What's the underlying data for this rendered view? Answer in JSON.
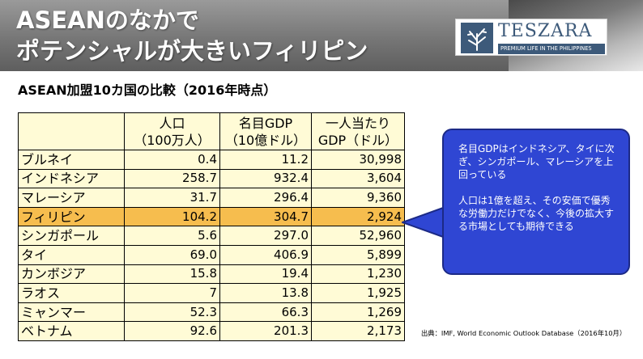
{
  "header": {
    "title_line1": "ASEANのなかで",
    "title_line2": "ポテンシャルが大きいフィリピン",
    "logo_name": "TESZARA",
    "logo_tagline": "PREMIUM LIFE IN THE PHILIPPINES"
  },
  "subtitle": "ASEAN加盟10カ国の比較（2016年時点）",
  "table": {
    "headers": [
      {
        "line1": "",
        "line2": ""
      },
      {
        "line1": "人口",
        "line2": "（100万人）"
      },
      {
        "line1": "名目GDP",
        "line2": "（10億ドル）"
      },
      {
        "line1": "一人当たり",
        "line2": "GDP（ドル）"
      }
    ],
    "rows": [
      {
        "country": "ブルネイ",
        "population": "0.4",
        "gdp": "11.2",
        "per_capita": "30,998"
      },
      {
        "country": "インドネシア",
        "population": "258.7",
        "gdp": "932.4",
        "per_capita": "3,604"
      },
      {
        "country": "マレーシア",
        "population": "31.7",
        "gdp": "296.4",
        "per_capita": "9,360"
      },
      {
        "country": "フィリピン",
        "population": "104.2",
        "gdp": "304.7",
        "per_capita": "2,924"
      },
      {
        "country": "シンガポール",
        "population": "5.6",
        "gdp": "297.0",
        "per_capita": "52,960"
      },
      {
        "country": "タイ",
        "population": "69.0",
        "gdp": "406.9",
        "per_capita": "5,899"
      },
      {
        "country": "カンボジア",
        "population": "15.8",
        "gdp": "19.4",
        "per_capita": "1,230"
      },
      {
        "country": "ラオス",
        "population": "7",
        "gdp": "13.8",
        "per_capita": "1,925"
      },
      {
        "country": "ミャンマー",
        "population": "52.3",
        "gdp": "66.3",
        "per_capita": "1,269"
      },
      {
        "country": "ベトナム",
        "population": "92.6",
        "gdp": "201.3",
        "per_capita": "2,173"
      }
    ],
    "highlight_color": "#f6bd4e",
    "background_color": "#fffbd6"
  },
  "callout": {
    "paragraph1": "名目GDPはインドネシア、タイに次ぎ、シンガポール、マレーシアを上回っている",
    "paragraph2": "人口は1億を超え、その安価で優秀な労働力だけでなく、今後の拡大する市場としても期待できる",
    "color": "#2f46d3"
  },
  "source": "出典：IMF, World Economic Outlook Database（2016年10月）"
}
